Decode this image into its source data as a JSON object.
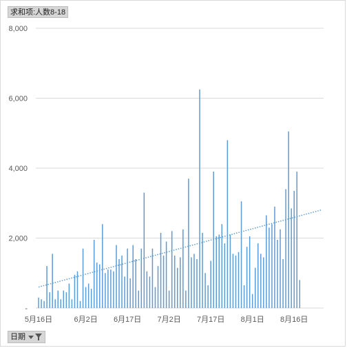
{
  "series_field_button": {
    "label": "求和项:人数8-18"
  },
  "axis_field_button": {
    "label": "日期",
    "icon": "filter-dropdown-icon"
  },
  "colors": {
    "bar": "#5b9bd5",
    "trendline": "#5b9bd5",
    "grid": "#d9d9d9",
    "axis_text": "#595959"
  },
  "chart_data": {
    "type": "bar",
    "subtype": "vertical-column",
    "series": [
      {
        "name": "求和项:人数8-18"
      }
    ],
    "x_tick_labels": [
      "5月16日",
      "6月2日",
      "6月17日",
      "7月2日",
      "7月17日",
      "8月1日",
      "8月16日"
    ],
    "x_tick_day_index": [
      0,
      17,
      32,
      47,
      62,
      77,
      92
    ],
    "x_first_date": "5月16日",
    "values": [
      300,
      250,
      200,
      1200,
      450,
      1550,
      250,
      500,
      250,
      500,
      450,
      700,
      250,
      950,
      1050,
      200,
      1700,
      600,
      700,
      550,
      1950,
      1300,
      1250,
      2400,
      1000,
      1100,
      1100,
      1050,
      1800,
      1400,
      1500,
      900,
      1700,
      850,
      1800,
      1400,
      500,
      1700,
      3300,
      1050,
      900,
      1700,
      600,
      1200,
      2150,
      1500,
      1900,
      500,
      2200,
      1500,
      1150,
      1450,
      2250,
      500,
      3700,
      1450,
      1550,
      1400,
      6250,
      2150,
      1000,
      650,
      1350,
      3900,
      2050,
      2100,
      2400,
      1850,
      4800,
      2100,
      1550,
      1500,
      1600,
      3050,
      650,
      1750,
      2050,
      400,
      1150,
      1850,
      1550,
      1450,
      2650,
      2300,
      2400,
      2900,
      1950,
      2250,
      1400,
      3400,
      5050,
      2850,
      3350,
      3900,
      800
    ],
    "ylim": [
      0,
      8000
    ],
    "y_ticks": [
      0,
      2000,
      4000,
      6000,
      8000
    ],
    "y_tick_labels": [
      "-",
      "2,000",
      "4,000",
      "6,000",
      "8,000"
    ],
    "grid": true,
    "legend": "none",
    "trendline": {
      "type": "linear",
      "style": "dotted",
      "start_value": 600,
      "end_value": 2800
    }
  }
}
